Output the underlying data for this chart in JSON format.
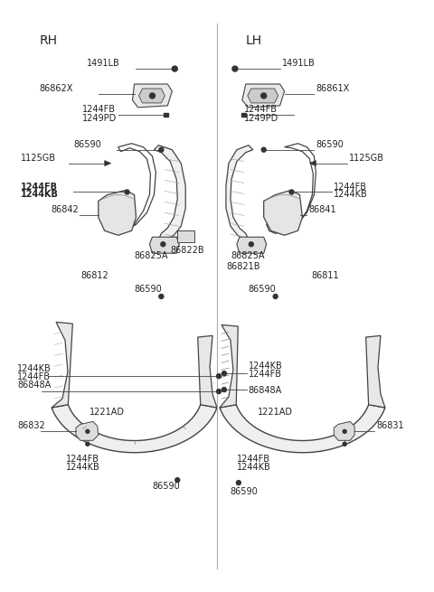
{
  "background_color": "#ffffff",
  "text_color": "#222222",
  "line_color": "#444444",
  "divider_color": "#aaaaaa",
  "rh_label": "RH",
  "lh_label": "LH",
  "fs_header": 10,
  "fs_part": 7,
  "rh_parts": {
    "bolt_top": "1491LB",
    "bracket": "86862X",
    "bracket_sub1": "1244FB",
    "bracket_sub2": "1249PD",
    "fender_bolt": "86590",
    "clip": "1125GB",
    "mud_sub1": "1244FB",
    "mud_sub2": "1244KB",
    "mud_part": "86842",
    "base_bracket1": "86825A",
    "base_bracket2": "86822B",
    "guard_label": "86812",
    "guard_bolt": "86590",
    "flap_a": "86848A",
    "flap_sub1": "1244FB",
    "flap_sub2": "1244KB",
    "corner_ad": "1221AD",
    "corner_part": "86832",
    "bot_sub1": "1244FB",
    "bot_sub2": "1244KB",
    "bot_bolt": "86590"
  },
  "lh_parts": {
    "bolt_top": "1491LB",
    "bracket": "86861X",
    "bracket_sub1": "1244FB",
    "bracket_sub2": "1249PD",
    "fender_bolt": "86590",
    "clip": "1125GB",
    "mud_sub1": "1244FB",
    "mud_sub2": "1244KB",
    "mud_part": "86841",
    "base_bracket1": "86825A",
    "base_bracket2": "86821B",
    "guard_label": "86811",
    "guard_bolt": "86590",
    "flap_a": "86848A",
    "flap_sub1": "1244FB",
    "flap_sub2": "1244KB",
    "corner_ad": "1221AD",
    "corner_part": "86831",
    "bot_sub1": "1244FB",
    "bot_sub2": "1244KB",
    "bot_bolt": "86590"
  }
}
